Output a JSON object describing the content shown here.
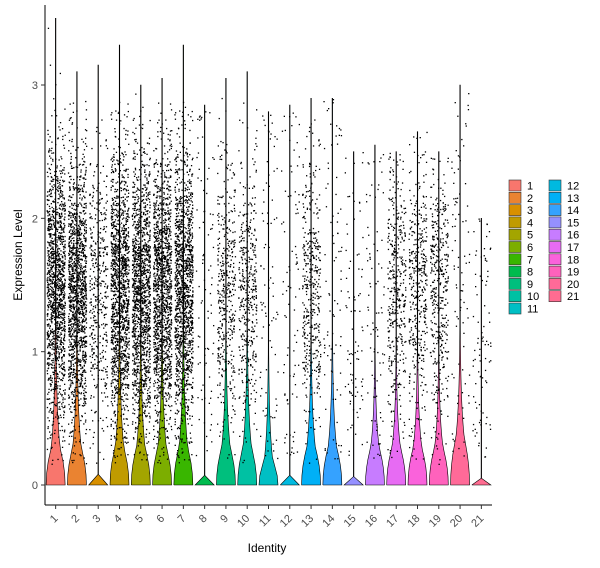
{
  "chart_data": {
    "type": "violin",
    "title": "",
    "xlabel": "Identity",
    "ylabel": "Expression Level",
    "ylim": [
      -0.15,
      3.6
    ],
    "yticks": [
      0,
      1,
      2,
      3
    ],
    "grid": false,
    "legend_position": "right",
    "categories": [
      "1",
      "2",
      "3",
      "4",
      "5",
      "6",
      "7",
      "8",
      "9",
      "10",
      "11",
      "12",
      "13",
      "14",
      "15",
      "16",
      "17",
      "18",
      "19",
      "20",
      "21"
    ],
    "colors": [
      "#F8766D",
      "#EA8331",
      "#D89000",
      "#C09B00",
      "#A3A500",
      "#7CAE00",
      "#39B600",
      "#00BB4E",
      "#00BF7D",
      "#00C1A3",
      "#00BFC4",
      "#00BAE0",
      "#00B0F6",
      "#35A2FF",
      "#9590FF",
      "#C77CFF",
      "#E76BF3",
      "#FA62DB",
      "#FF62BC",
      "#FF6A98",
      "#FF6C91"
    ],
    "series": [
      {
        "name": "1",
        "violin_peak": 0.28,
        "max": 3.5,
        "density": "high"
      },
      {
        "name": "2",
        "violin_peak": 0.28,
        "max": 3.1,
        "density": "high"
      },
      {
        "name": "3",
        "violin_peak": 0.0,
        "max": 3.15,
        "density": "medium"
      },
      {
        "name": "4",
        "violin_peak": 0.28,
        "max": 3.3,
        "density": "high"
      },
      {
        "name": "5",
        "violin_peak": 0.28,
        "max": 3.0,
        "density": "high"
      },
      {
        "name": "6",
        "violin_peak": 0.28,
        "max": 3.05,
        "density": "high"
      },
      {
        "name": "7",
        "violin_peak": 0.28,
        "max": 3.3,
        "density": "high"
      },
      {
        "name": "8",
        "violin_peak": 0.0,
        "max": 2.85,
        "density": "low"
      },
      {
        "name": "9",
        "violin_peak": 0.28,
        "max": 3.05,
        "density": "medium"
      },
      {
        "name": "10",
        "violin_peak": 0.28,
        "max": 3.1,
        "density": "medium"
      },
      {
        "name": "11",
        "violin_peak": 0.18,
        "max": 2.8,
        "density": "low"
      },
      {
        "name": "12",
        "violin_peak": 0.0,
        "max": 2.85,
        "density": "low"
      },
      {
        "name": "13",
        "violin_peak": 0.28,
        "max": 2.9,
        "density": "medium"
      },
      {
        "name": "14",
        "violin_peak": 0.28,
        "max": 2.9,
        "density": "low"
      },
      {
        "name": "15",
        "violin_peak": 0.0,
        "max": 2.5,
        "density": "low"
      },
      {
        "name": "16",
        "violin_peak": 0.28,
        "max": 2.55,
        "density": "low"
      },
      {
        "name": "17",
        "violin_peak": 0.28,
        "max": 2.5,
        "density": "medium"
      },
      {
        "name": "18",
        "violin_peak": 0.28,
        "max": 2.65,
        "density": "medium"
      },
      {
        "name": "19",
        "violin_peak": 0.28,
        "max": 2.5,
        "density": "medium"
      },
      {
        "name": "20",
        "violin_peak": 0.35,
        "max": 3.0,
        "density": "low"
      },
      {
        "name": "21",
        "violin_peak": 0.0,
        "max": 2.0,
        "density": "low"
      }
    ]
  }
}
